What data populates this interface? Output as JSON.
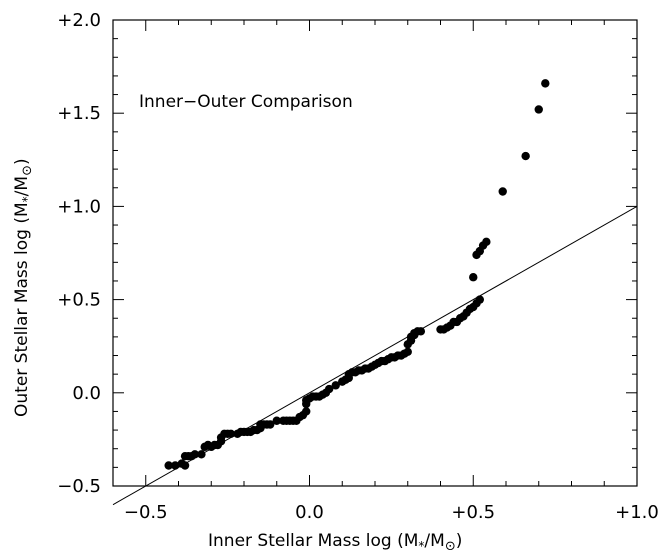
{
  "chart_data": {
    "type": "scatter",
    "title": "",
    "annotation": "Inner−Outer Comparison",
    "xlabel": "Inner Stellar Mass  log (M",
    "xlabel_sub": "*",
    "xlabel_mid": "/M",
    "xlabel_sub2": "⊙",
    "xlabel_end": ")",
    "ylabel": "Outer Stellar Mass  log (M",
    "ylabel_sub": "*",
    "ylabel_mid": "/M",
    "ylabel_sub2": "⊙",
    "ylabel_end": ")",
    "xlim": [
      -0.6,
      1.0
    ],
    "ylim": [
      -0.5,
      2.0
    ],
    "x_ticks": [
      {
        "value": -0.5,
        "label": "−0.5"
      },
      {
        "value": 0.0,
        "label": "0.0"
      },
      {
        "value": 0.5,
        "label": "+0.5"
      },
      {
        "value": 1.0,
        "label": "+1.0"
      }
    ],
    "y_ticks": [
      {
        "value": -0.5,
        "label": "−0.5"
      },
      {
        "value": 0.0,
        "label": "0.0"
      },
      {
        "value": 0.5,
        "label": "+0.5"
      },
      {
        "value": 1.0,
        "label": "+1.0"
      },
      {
        "value": 1.5,
        "label": "+1.5"
      },
      {
        "value": 2.0,
        "label": "+2.0"
      }
    ],
    "x_minor_step": 0.1,
    "y_minor_step": 0.1,
    "reference_line": {
      "type": "one-to-one",
      "x": [
        -0.6,
        1.0
      ],
      "y": [
        -0.6,
        1.0
      ]
    },
    "grid": false,
    "points": [
      [
        -0.43,
        -0.39
      ],
      [
        -0.41,
        -0.39
      ],
      [
        -0.39,
        -0.38
      ],
      [
        -0.38,
        -0.39
      ],
      [
        -0.38,
        -0.34
      ],
      [
        -0.37,
        -0.34
      ],
      [
        -0.36,
        -0.34
      ],
      [
        -0.35,
        -0.33
      ],
      [
        -0.33,
        -0.33
      ],
      [
        -0.32,
        -0.29
      ],
      [
        -0.31,
        -0.28
      ],
      [
        -0.3,
        -0.29
      ],
      [
        -0.29,
        -0.28
      ],
      [
        -0.28,
        -0.28
      ],
      [
        -0.27,
        -0.26
      ],
      [
        -0.27,
        -0.24
      ],
      [
        -0.26,
        -0.22
      ],
      [
        -0.25,
        -0.22
      ],
      [
        -0.24,
        -0.22
      ],
      [
        -0.22,
        -0.22
      ],
      [
        -0.21,
        -0.21
      ],
      [
        -0.2,
        -0.21
      ],
      [
        -0.19,
        -0.21
      ],
      [
        -0.18,
        -0.21
      ],
      [
        -0.17,
        -0.2
      ],
      [
        -0.16,
        -0.2
      ],
      [
        -0.15,
        -0.19
      ],
      [
        -0.15,
        -0.17
      ],
      [
        -0.14,
        -0.17
      ],
      [
        -0.13,
        -0.17
      ],
      [
        -0.12,
        -0.17
      ],
      [
        -0.1,
        -0.15
      ],
      [
        -0.08,
        -0.15
      ],
      [
        -0.07,
        -0.15
      ],
      [
        -0.06,
        -0.15
      ],
      [
        -0.05,
        -0.15
      ],
      [
        -0.04,
        -0.15
      ],
      [
        -0.03,
        -0.13
      ],
      [
        -0.02,
        -0.12
      ],
      [
        -0.01,
        -0.1
      ],
      [
        -0.01,
        -0.06
      ],
      [
        -0.01,
        -0.04
      ],
      [
        0.0,
        -0.03
      ],
      [
        0.01,
        -0.02
      ],
      [
        0.02,
        -0.02
      ],
      [
        0.03,
        -0.02
      ],
      [
        0.04,
        -0.01
      ],
      [
        0.05,
        0.0
      ],
      [
        0.06,
        0.02
      ],
      [
        0.08,
        0.04
      ],
      [
        0.1,
        0.06
      ],
      [
        0.11,
        0.07
      ],
      [
        0.12,
        0.08
      ],
      [
        0.12,
        0.1
      ],
      [
        0.13,
        0.11
      ],
      [
        0.14,
        0.11
      ],
      [
        0.15,
        0.12
      ],
      [
        0.16,
        0.12
      ],
      [
        0.17,
        0.13
      ],
      [
        0.18,
        0.13
      ],
      [
        0.19,
        0.14
      ],
      [
        0.2,
        0.15
      ],
      [
        0.21,
        0.16
      ],
      [
        0.22,
        0.17
      ],
      [
        0.23,
        0.17
      ],
      [
        0.24,
        0.18
      ],
      [
        0.25,
        0.19
      ],
      [
        0.26,
        0.19
      ],
      [
        0.27,
        0.2
      ],
      [
        0.28,
        0.2
      ],
      [
        0.29,
        0.21
      ],
      [
        0.3,
        0.22
      ],
      [
        0.3,
        0.26
      ],
      [
        0.31,
        0.28
      ],
      [
        0.31,
        0.3
      ],
      [
        0.32,
        0.31
      ],
      [
        0.32,
        0.32
      ],
      [
        0.33,
        0.33
      ],
      [
        0.34,
        0.33
      ],
      [
        0.4,
        0.34
      ],
      [
        0.41,
        0.34
      ],
      [
        0.42,
        0.35
      ],
      [
        0.43,
        0.36
      ],
      [
        0.44,
        0.38
      ],
      [
        0.45,
        0.38
      ],
      [
        0.46,
        0.4
      ],
      [
        0.47,
        0.41
      ],
      [
        0.48,
        0.43
      ],
      [
        0.49,
        0.45
      ],
      [
        0.5,
        0.46
      ],
      [
        0.51,
        0.48
      ],
      [
        0.52,
        0.5
      ],
      [
        0.5,
        0.62
      ],
      [
        0.51,
        0.74
      ],
      [
        0.52,
        0.76
      ],
      [
        0.53,
        0.79
      ],
      [
        0.54,
        0.81
      ],
      [
        0.59,
        1.08
      ],
      [
        0.66,
        1.27
      ],
      [
        0.7,
        1.52
      ],
      [
        0.72,
        1.66
      ]
    ]
  }
}
